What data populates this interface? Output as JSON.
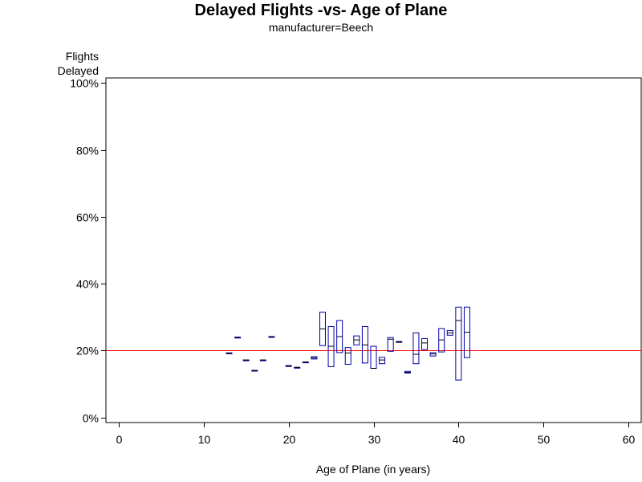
{
  "chart_data": {
    "type": "box",
    "title": "Delayed Flights -vs- Age of Plane",
    "subtitle": "manufacturer=Beech",
    "ylabel_lines": [
      "Flights",
      "Delayed"
    ],
    "xlabel": "Age of Plane (in years)",
    "xlim": [
      -1.5,
      61.5
    ],
    "ylim": [
      -1.5,
      101.5
    ],
    "x_ticks": [
      0,
      10,
      20,
      30,
      40,
      50,
      60
    ],
    "y_ticks": [
      0,
      20,
      40,
      60,
      80,
      100
    ],
    "y_tick_labels": [
      "0%",
      "20%",
      "40%",
      "60%",
      "80%",
      "100%"
    ],
    "reference_line": {
      "y": 20,
      "color": "#ff0000"
    },
    "box_color": "#0000aa",
    "boxes": [
      {
        "x": 13,
        "low": 19.3,
        "q1": 19.3,
        "median": 19.3,
        "q3": 19.3,
        "high": 19.3
      },
      {
        "x": 14,
        "low": 24.0,
        "q1": 24.0,
        "median": 24.0,
        "q3": 24.0,
        "high": 24.0
      },
      {
        "x": 15,
        "low": 17.2,
        "q1": 17.2,
        "median": 17.2,
        "q3": 17.2,
        "high": 17.2
      },
      {
        "x": 16,
        "low": 14.1,
        "q1": 14.1,
        "median": 14.1,
        "q3": 14.1,
        "high": 14.1
      },
      {
        "x": 17,
        "low": 17.2,
        "q1": 17.2,
        "median": 17.2,
        "q3": 17.2,
        "high": 17.2
      },
      {
        "x": 18,
        "low": 24.2,
        "q1": 24.2,
        "median": 24.2,
        "q3": 24.2,
        "high": 24.2
      },
      {
        "x": 20,
        "low": 15.5,
        "q1": 15.5,
        "median": 15.5,
        "q3": 15.5,
        "high": 15.5
      },
      {
        "x": 21,
        "low": 15.0,
        "q1": 15.0,
        "median": 15.0,
        "q3": 15.0,
        "high": 15.0
      },
      {
        "x": 22,
        "low": 16.6,
        "q1": 16.6,
        "median": 16.6,
        "q3": 16.6,
        "high": 16.6
      },
      {
        "x": 23,
        "low": 17.5,
        "q1": 17.5,
        "median": 17.8,
        "q3": 18.2,
        "high": 18.2
      },
      {
        "x": 24,
        "low": 21.5,
        "q1": 21.5,
        "median": 26.5,
        "q3": 31.5,
        "high": 31.5
      },
      {
        "x": 25,
        "low": 15.2,
        "q1": 15.2,
        "median": 21.3,
        "q3": 27.2,
        "high": 27.2
      },
      {
        "x": 26,
        "low": 19.4,
        "q1": 19.4,
        "median": 24.2,
        "q3": 29.0,
        "high": 29.0
      },
      {
        "x": 27,
        "low": 15.9,
        "q1": 15.9,
        "median": 19.3,
        "q3": 20.9,
        "high": 20.9
      },
      {
        "x": 28,
        "low": 21.7,
        "q1": 21.7,
        "median": 23.2,
        "q3": 24.4,
        "high": 24.4
      },
      {
        "x": 29,
        "low": 16.3,
        "q1": 16.3,
        "median": 21.7,
        "q3": 27.2,
        "high": 27.2
      },
      {
        "x": 30,
        "low": 14.7,
        "q1": 14.7,
        "median": 14.7,
        "q3": 21.3,
        "high": 21.3
      },
      {
        "x": 31,
        "low": 16.1,
        "q1": 16.1,
        "median": 17.2,
        "q3": 18.0,
        "high": 18.0
      },
      {
        "x": 32,
        "low": 19.8,
        "q1": 19.8,
        "median": 23.4,
        "q3": 23.9,
        "high": 23.9
      },
      {
        "x": 33,
        "low": 22.7,
        "q1": 22.7,
        "median": 22.7,
        "q3": 22.7,
        "high": 22.7
      },
      {
        "x": 34,
        "low": 13.3,
        "q1": 13.3,
        "median": 13.5,
        "q3": 13.8,
        "high": 13.8
      },
      {
        "x": 35,
        "low": 16.1,
        "q1": 16.1,
        "median": 18.9,
        "q3": 25.3,
        "high": 25.3
      },
      {
        "x": 36,
        "low": 20.3,
        "q1": 20.3,
        "median": 22.3,
        "q3": 23.6,
        "high": 23.6
      },
      {
        "x": 37,
        "low": 18.4,
        "q1": 18.4,
        "median": 19.0,
        "q3": 19.4,
        "high": 19.4
      },
      {
        "x": 38,
        "low": 19.6,
        "q1": 19.6,
        "median": 23.2,
        "q3": 26.6,
        "high": 26.6
      },
      {
        "x": 39,
        "low": 24.6,
        "q1": 24.6,
        "median": 25.3,
        "q3": 26.0,
        "high": 26.0
      },
      {
        "x": 40,
        "low": 11.2,
        "q1": 11.2,
        "median": 29.0,
        "q3": 33.0,
        "high": 33.0
      },
      {
        "x": 41,
        "low": 17.9,
        "q1": 17.9,
        "median": 25.5,
        "q3": 33.0,
        "high": 33.0
      }
    ]
  }
}
